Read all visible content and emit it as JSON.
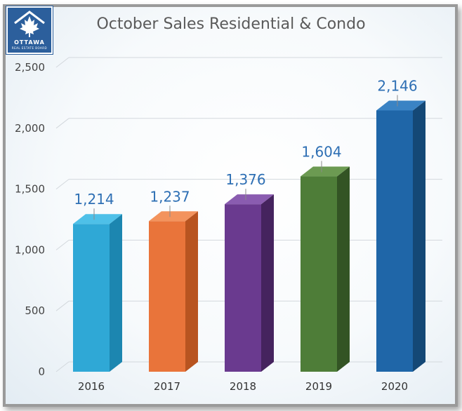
{
  "logo": {
    "name": "ottawa-real-estate-board-logo",
    "word": "OTTAWA",
    "sub": "REAL ESTATE BOARD"
  },
  "chart_data": {
    "type": "bar",
    "title": "October Sales Residential & Condo",
    "categories": [
      "2016",
      "2017",
      "2018",
      "2019",
      "2020"
    ],
    "values": [
      1214,
      1237,
      1376,
      1604,
      2146
    ],
    "data_labels": [
      "1,214",
      "1,237",
      "1,376",
      "1,604",
      "2,146"
    ],
    "colors": [
      "#2fa8d6",
      "#e9743a",
      "#6a3a8f",
      "#4e7d38",
      "#1f66a8"
    ],
    "side_colors": [
      "#1c86b0",
      "#b85420",
      "#45235e",
      "#335424",
      "#144876"
    ],
    "top_colors": [
      "#4ec0e8",
      "#f3935d",
      "#8a5cb0",
      "#6c9a52",
      "#3a83c4"
    ],
    "ylim": [
      0,
      2500
    ],
    "yticks": [
      0,
      500,
      1000,
      1500,
      2000,
      2500
    ],
    "ytick_labels": [
      "0",
      "500",
      "1,000",
      "1,500",
      "2,000",
      "2,500"
    ],
    "xlabel": "",
    "ylabel": "",
    "grid": true,
    "legend": false,
    "label_color": "#2e6fb4"
  }
}
